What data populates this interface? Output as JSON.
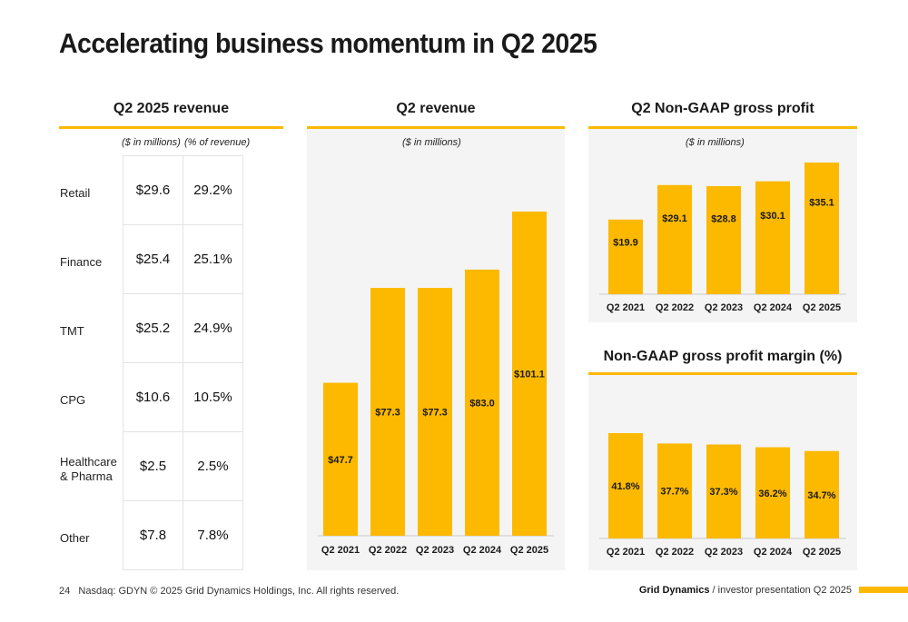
{
  "title": "Accelerating business momentum in Q2 2025",
  "revenue_table": {
    "title": "Q2 2025 revenue",
    "col1_unit": "($ in millions)",
    "col2_unit": "(% of revenue)",
    "rows": [
      {
        "segment": "Retail",
        "value": "$29.6",
        "pct": "29.2%"
      },
      {
        "segment": "Finance",
        "value": "$25.4",
        "pct": "25.1%"
      },
      {
        "segment": "TMT",
        "value": "$25.2",
        "pct": "24.9%"
      },
      {
        "segment": "CPG",
        "value": "$10.6",
        "pct": "10.5%"
      },
      {
        "segment": "Healthcare\n& Pharma",
        "value": "$2.5",
        "pct": "2.5%"
      },
      {
        "segment": "Other",
        "value": "$7.8",
        "pct": "7.8%"
      }
    ]
  },
  "revenue_chart_header": {
    "title": "Q2 revenue",
    "unit": "($ in millions)"
  },
  "gross_profit_header": {
    "title": "Q2 Non-GAAP gross profit",
    "unit": "($ in millions)"
  },
  "margin_header": {
    "title": "Non-GAAP gross profit margin (%)"
  },
  "chart_data": [
    {
      "type": "bar",
      "title": "Q2 revenue",
      "ylabel": "($ in millions)",
      "categories": [
        "Q2 2021",
        "Q2 2022",
        "Q2 2023",
        "Q2 2024",
        "Q2 2025"
      ],
      "values": [
        47.7,
        77.3,
        77.3,
        83.0,
        101.1
      ],
      "labels": [
        "$47.7",
        "$77.3",
        "$77.3",
        "$83.0",
        "$101.1"
      ],
      "ylim": [
        0,
        101.1
      ],
      "grid": false
    },
    {
      "type": "bar",
      "title": "Q2 Non-GAAP gross profit",
      "ylabel": "($ in millions)",
      "categories": [
        "Q2 2021",
        "Q2 2022",
        "Q2 2023",
        "Q2 2024",
        "Q2 2025"
      ],
      "values": [
        19.9,
        29.1,
        28.8,
        30.1,
        35.1
      ],
      "labels": [
        "$19.9",
        "$29.1",
        "$28.8",
        "$30.1",
        "$35.1"
      ],
      "ylim": [
        0,
        35.1
      ],
      "grid": false
    },
    {
      "type": "bar",
      "title": "Non-GAAP gross profit margin (%)",
      "categories": [
        "Q2 2021",
        "Q2 2022",
        "Q2 2023",
        "Q2 2024",
        "Q2 2025"
      ],
      "values": [
        41.8,
        37.7,
        37.3,
        36.2,
        34.7
      ],
      "labels": [
        "41.8%",
        "37.7%",
        "37.3%",
        "36.2%",
        "34.7%"
      ],
      "ylim": [
        0,
        41.8
      ],
      "grid": false
    }
  ],
  "footer": {
    "page": "24",
    "legal": "Nasdaq: GDYN © 2025 Grid Dynamics Holdings, Inc. All rights reserved.",
    "brand": "Grid Dynamics",
    "tagline": "/ investor presentation Q2 2025"
  },
  "colors": {
    "accent": "#FCB900",
    "panel": "#f4f4f4"
  }
}
